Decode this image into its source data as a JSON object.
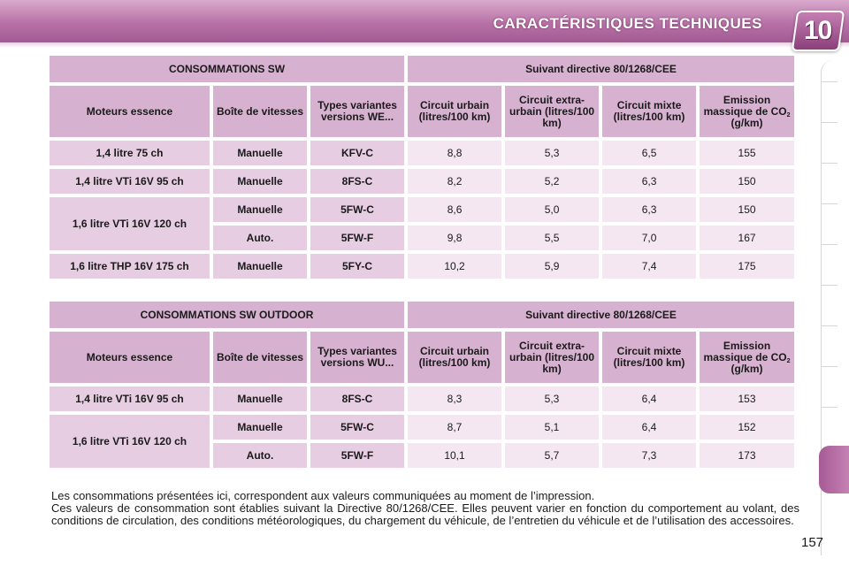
{
  "header": {
    "title": "CARACTÉRISTIQUES TECHNIQUES",
    "chapter_number": "10"
  },
  "table_headers": {
    "engine": "Moteurs essence",
    "gearbox": "Boîte de vitesses",
    "urban": "Circuit urbain (litres/100 km)",
    "extra_urban": "Circuit extra-urbain (litres/100 km)",
    "mixed": "Circuit mixte (litres/100 km)",
    "emission_prefix": "Emission massique de CO",
    "emission_sub": "2",
    "emission_suffix": " (g/km)"
  },
  "tables": [
    {
      "title": "CONSOMMATIONS SW",
      "directive": "Suivant directive 80/1268/CEE",
      "variants_header": "Types variantes versions WE...",
      "rows": [
        {
          "engine": "1,4 litre 75 ch",
          "gearbox": "Manuelle",
          "variant": "KFV-C",
          "urban": "8,8",
          "extra": "5,3",
          "mixed": "6,5",
          "co2": "155"
        },
        {
          "engine": "1,4 litre VTi 16V 95 ch",
          "gearbox": "Manuelle",
          "variant": "8FS-C",
          "urban": "8,2",
          "extra": "5,2",
          "mixed": "6,3",
          "co2": "150"
        },
        {
          "engine": "1,6 litre VTi 16V 120 ch",
          "gearbox": "Manuelle",
          "variant": "5FW-C",
          "urban": "8,6",
          "extra": "5,0",
          "mixed": "6,3",
          "co2": "150"
        },
        {
          "engine": "",
          "gearbox": "Auto.",
          "variant": "5FW-F",
          "urban": "9,8",
          "extra": "5,5",
          "mixed": "7,0",
          "co2": "167"
        },
        {
          "engine": "1,6 litre THP 16V 175 ch",
          "gearbox": "Manuelle",
          "variant": "5FY-C",
          "urban": "10,2",
          "extra": "5,9",
          "mixed": "7,4",
          "co2": "175"
        }
      ]
    },
    {
      "title": "CONSOMMATIONS SW OUTDOOR",
      "directive": "Suivant directive 80/1268/CEE",
      "variants_header": "Types variantes versions WU...",
      "rows": [
        {
          "engine": "1,4 litre VTi 16V 95 ch",
          "gearbox": "Manuelle",
          "variant": "8FS-C",
          "urban": "8,3",
          "extra": "5,3",
          "mixed": "6,4",
          "co2": "153"
        },
        {
          "engine": "1,6 litre VTi 16V 120 ch",
          "gearbox": "Manuelle",
          "variant": "5FW-C",
          "urban": "8,7",
          "extra": "5,1",
          "mixed": "6,4",
          "co2": "152"
        },
        {
          "engine": "",
          "gearbox": "Auto.",
          "variant": "5FW-F",
          "urban": "10,1",
          "extra": "5,7",
          "mixed": "7,3",
          "co2": "173"
        }
      ]
    }
  ],
  "notes": {
    "line1": "Les consommations présentées ici, correspondent aux valeurs communiquées au moment de l’impression.",
    "line2": "Ces valeurs de consommation sont établies suivant la Directive 80/1268/CEE. Elles peuvent varier en fonction du comportement au volant, des conditions de circulation, des conditions météorologiques, du chargement du véhicule, de l’entretien du véhicule et de l’utilisation des accessoires."
  },
  "page_number": "157",
  "colors": {
    "header_accent": "#b871a6",
    "header_cell": "#d7b1d0",
    "label_cell": "#e6cde2",
    "value_cell": "#f4e7f1"
  }
}
